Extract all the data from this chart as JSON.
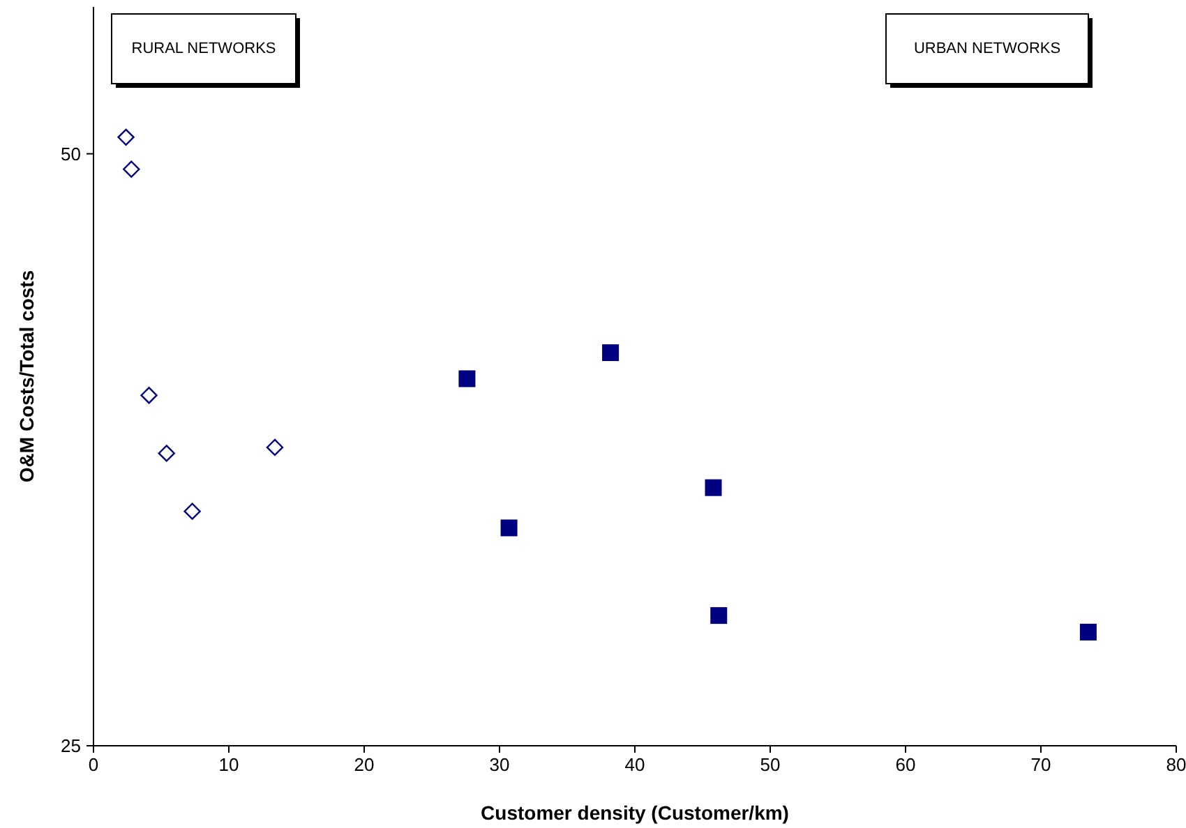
{
  "chart_data": {
    "type": "scatter",
    "xlabel": "Customer density (Customer/km)",
    "ylabel": "O&M Costs/Total costs",
    "xlim": [
      0,
      80
    ],
    "xticks": [
      0,
      10,
      20,
      30,
      40,
      50,
      60,
      70,
      80
    ],
    "ylim": [
      25,
      56.2
    ],
    "yticks": [
      25,
      50
    ],
    "grid": false,
    "annotations": [
      "RURAL NETWORKS",
      "URBAN NETWORKS"
    ],
    "series": [
      {
        "color": "#000080",
        "marker": "diamond",
        "x": [
          2.4,
          2.8,
          4.1,
          5.4,
          7.3,
          13.4
        ],
        "values": [
          50.7,
          49.35,
          39.8,
          37.35,
          34.9,
          37.6
        ]
      },
      {
        "color": "#000080",
        "marker": "square",
        "x": [
          27.6,
          38.2,
          30.7,
          45.8,
          46.2,
          73.5
        ],
        "values": [
          40.5,
          41.6,
          34.2,
          35.9,
          30.5,
          29.8
        ]
      }
    ]
  }
}
